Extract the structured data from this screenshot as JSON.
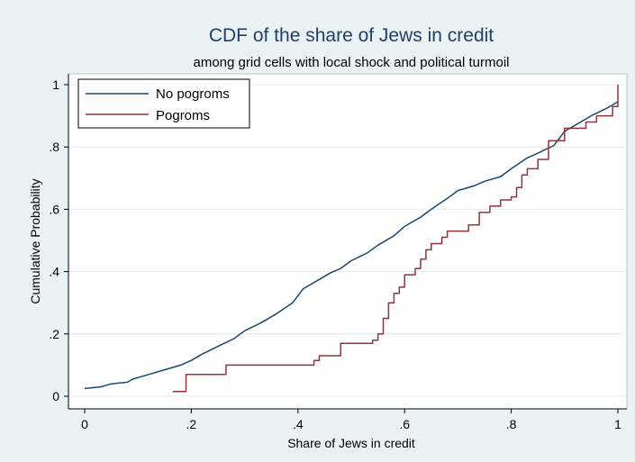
{
  "chart_data": {
    "type": "line",
    "title": "CDF of the share of Jews in credit",
    "subtitle": "among grid cells with local shock and political turmoil",
    "xlabel": "Share of Jews in credit",
    "ylabel": "Cumulative Probability",
    "xlim": [
      0,
      1
    ],
    "ylim": [
      0,
      1
    ],
    "x_ticks": [
      0,
      0.2,
      0.4,
      0.6,
      0.8,
      1
    ],
    "x_tick_labels": [
      "0",
      ".2",
      ".4",
      ".6",
      ".8",
      "1"
    ],
    "y_ticks": [
      0,
      0.2,
      0.4,
      0.6,
      0.8,
      1
    ],
    "y_tick_labels": [
      "0",
      ".2",
      ".4",
      ".6",
      ".8",
      "1"
    ],
    "grid": "horizontal",
    "legend": {
      "position": "top-left"
    },
    "colors": {
      "no_pogroms": "#1a476f",
      "pogroms": "#90353b",
      "background": "#eaf2f3",
      "plot_background": "#ffffff"
    },
    "series": [
      {
        "name": "No pogroms",
        "color": "#1a476f",
        "step": false,
        "x": [
          0.0,
          0.03,
          0.05,
          0.08,
          0.09,
          0.12,
          0.15,
          0.18,
          0.2,
          0.22,
          0.25,
          0.28,
          0.3,
          0.33,
          0.36,
          0.39,
          0.41,
          0.44,
          0.46,
          0.48,
          0.5,
          0.53,
          0.55,
          0.58,
          0.6,
          0.63,
          0.65,
          0.68,
          0.7,
          0.73,
          0.75,
          0.78,
          0.8,
          0.83,
          0.85,
          0.88,
          0.9,
          0.93,
          0.95,
          0.98,
          1.0
        ],
        "y": [
          0.025,
          0.03,
          0.04,
          0.045,
          0.055,
          0.07,
          0.085,
          0.1,
          0.115,
          0.135,
          0.16,
          0.185,
          0.21,
          0.235,
          0.265,
          0.3,
          0.345,
          0.375,
          0.395,
          0.41,
          0.435,
          0.46,
          0.485,
          0.515,
          0.545,
          0.575,
          0.6,
          0.635,
          0.66,
          0.675,
          0.69,
          0.705,
          0.73,
          0.765,
          0.78,
          0.805,
          0.85,
          0.88,
          0.9,
          0.925,
          0.945
        ]
      },
      {
        "name": "Pogroms",
        "color": "#90353b",
        "step": true,
        "x": [
          0.165,
          0.19,
          0.265,
          0.43,
          0.44,
          0.48,
          0.54,
          0.55,
          0.56,
          0.57,
          0.58,
          0.59,
          0.6,
          0.61,
          0.62,
          0.63,
          0.64,
          0.65,
          0.66,
          0.67,
          0.68,
          0.7,
          0.72,
          0.74,
          0.76,
          0.78,
          0.8,
          0.81,
          0.82,
          0.83,
          0.85,
          0.87,
          0.9,
          0.94,
          0.96,
          0.99,
          1.0
        ],
        "y": [
          0.015,
          0.07,
          0.1,
          0.115,
          0.13,
          0.17,
          0.18,
          0.2,
          0.25,
          0.3,
          0.33,
          0.35,
          0.39,
          0.39,
          0.41,
          0.44,
          0.47,
          0.49,
          0.49,
          0.51,
          0.53,
          0.53,
          0.55,
          0.59,
          0.61,
          0.63,
          0.64,
          0.67,
          0.71,
          0.73,
          0.76,
          0.82,
          0.86,
          0.88,
          0.9,
          0.93,
          1.0
        ]
      }
    ]
  }
}
